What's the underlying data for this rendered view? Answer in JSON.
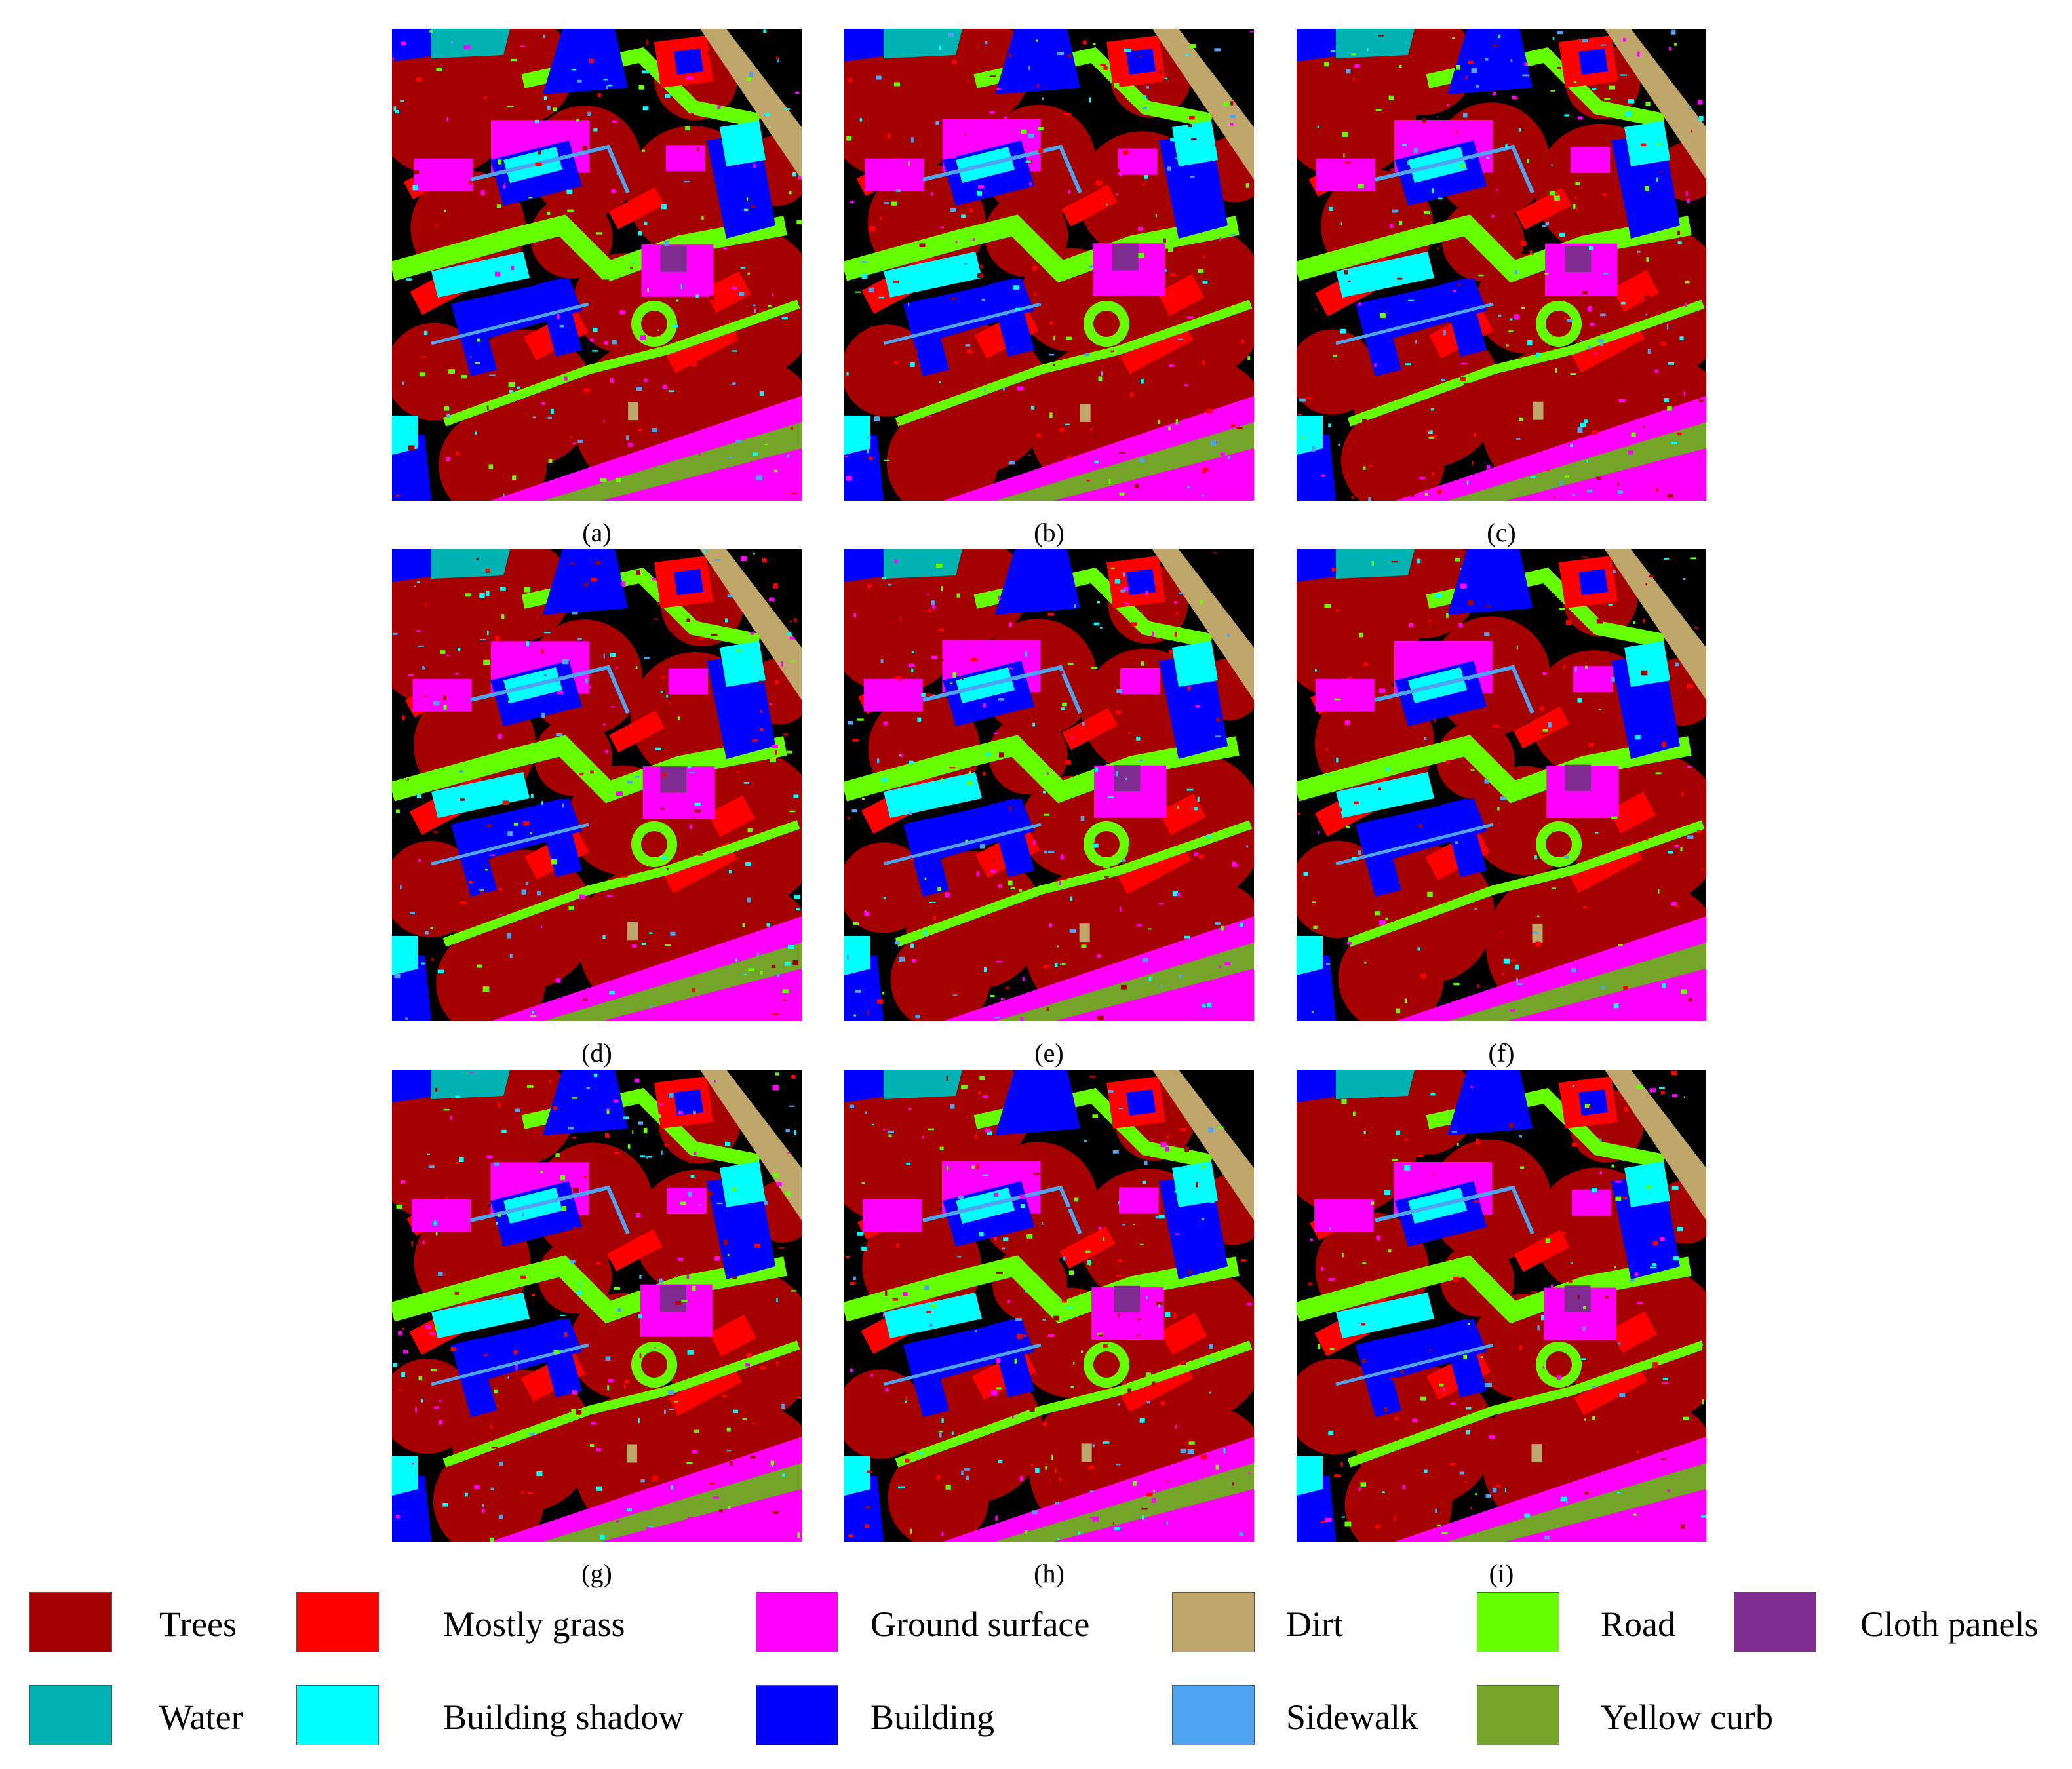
{
  "panels": [
    {
      "caption": "(a)",
      "seed": 11
    },
    {
      "caption": "(b)",
      "seed": 23
    },
    {
      "caption": "(c)",
      "seed": 37
    },
    {
      "caption": "(d)",
      "seed": 41
    },
    {
      "caption": "(e)",
      "seed": 53
    },
    {
      "caption": "(f)",
      "seed": 67
    },
    {
      "caption": "(g)",
      "seed": 71
    },
    {
      "caption": "(h)",
      "seed": 83
    },
    {
      "caption": "(i)",
      "seed": 97
    }
  ],
  "legend": [
    {
      "label": "Trees",
      "color": "#a50000"
    },
    {
      "label": "Mostly grass",
      "color": "#ff0000"
    },
    {
      "label": "Ground surface",
      "color": "#ff00ff"
    },
    {
      "label": "Dirt",
      "color": "#bfa66a"
    },
    {
      "label": "Road",
      "color": "#66ff00"
    },
    {
      "label": "Cloth panels",
      "color": "#7f2b90"
    },
    {
      "label": "Water",
      "color": "#00b3b3"
    },
    {
      "label": "Building shadow",
      "color": "#00ffff"
    },
    {
      "label": "Building",
      "color": "#0000ff"
    },
    {
      "label": "Sidewalk",
      "color": "#4fa3f0"
    },
    {
      "label": "Yellow curb",
      "color": "#74a42a"
    }
  ],
  "background_class_color": "#000000"
}
